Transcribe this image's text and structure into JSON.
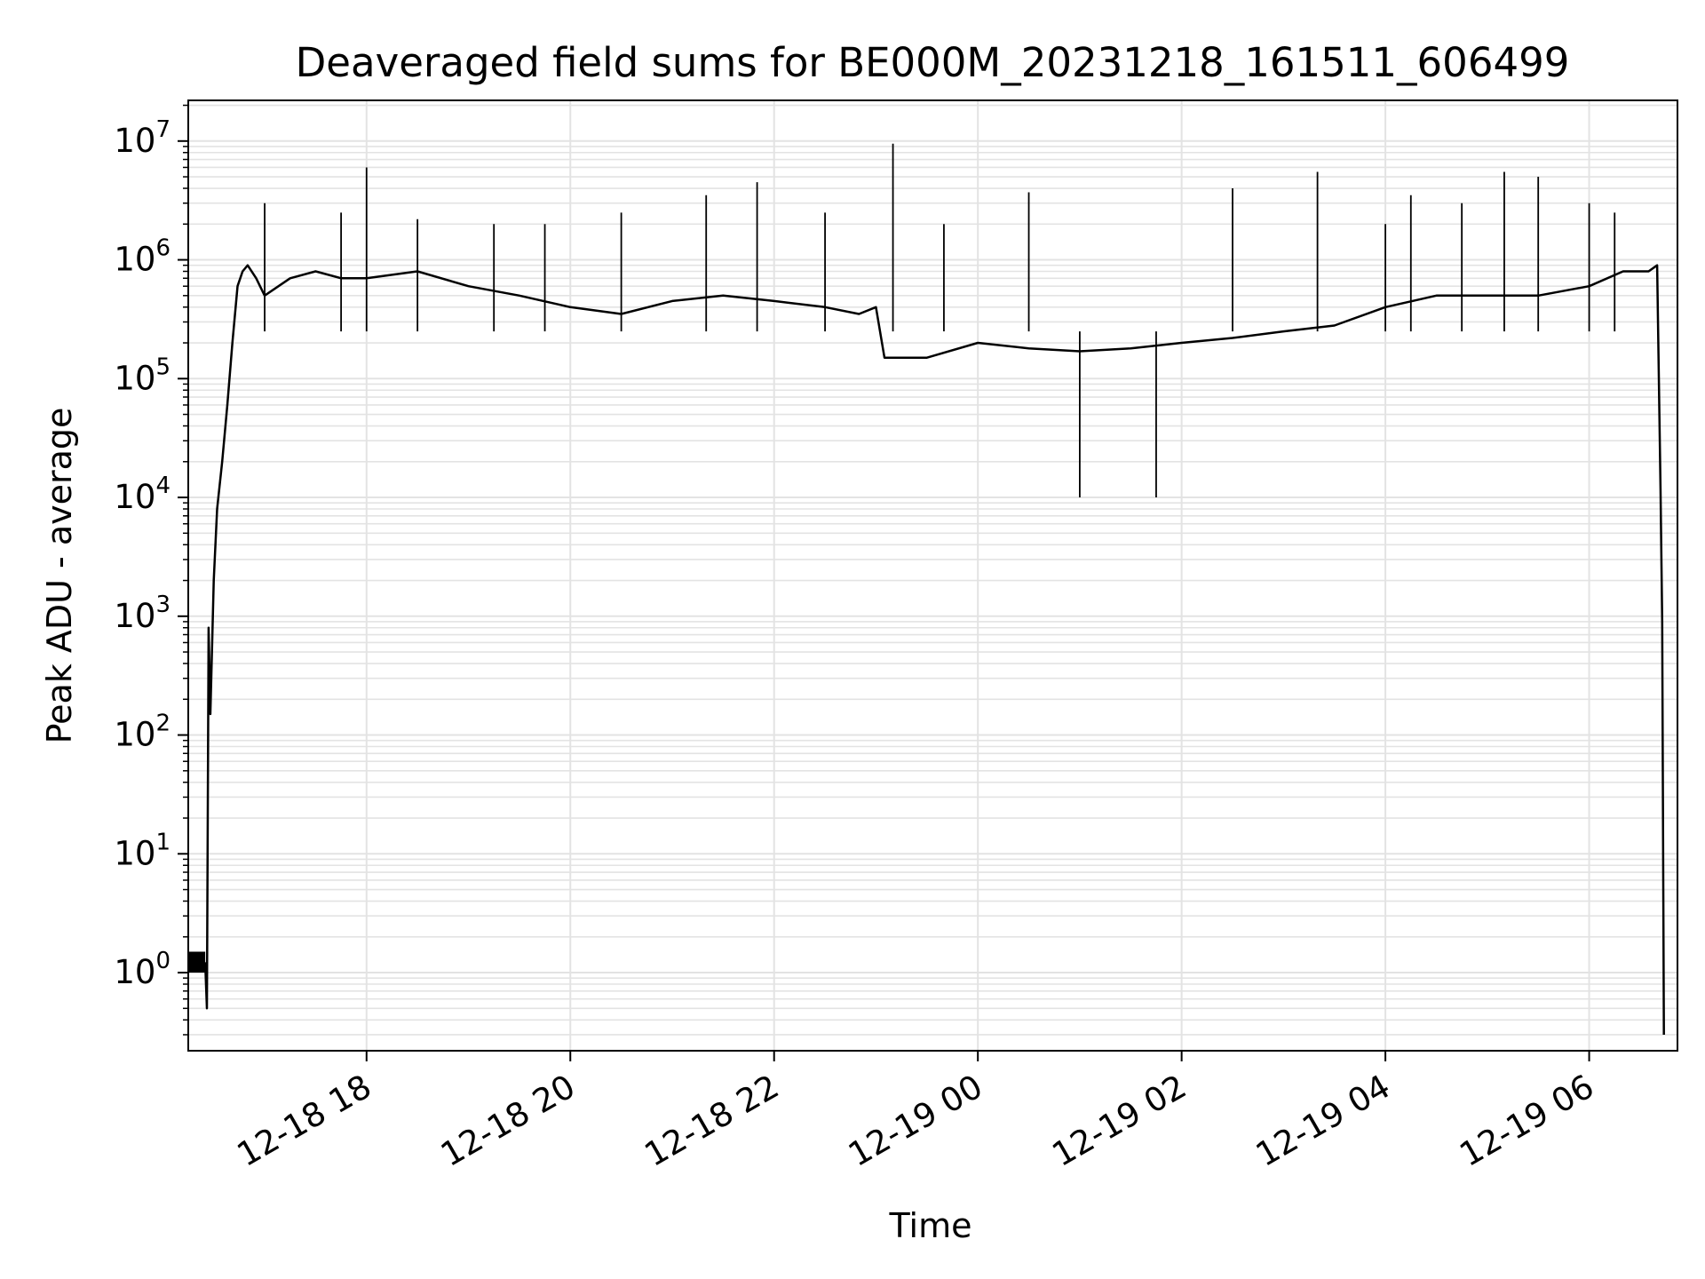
{
  "chart_data": {
    "type": "line",
    "title": "Deaveraged field sums for BE000M_20231218_161511_606499",
    "xlabel": "Time",
    "ylabel": "Peak ADU - average",
    "y_scale": "log",
    "ylim": [
      0.22,
      22000000
    ],
    "y_ticks": [
      {
        "value": 1,
        "base": "10",
        "exp": "0"
      },
      {
        "value": 10,
        "base": "10",
        "exp": "1"
      },
      {
        "value": 100,
        "base": "10",
        "exp": "2"
      },
      {
        "value": 1000,
        "base": "10",
        "exp": "3"
      },
      {
        "value": 10000,
        "base": "10",
        "exp": "4"
      },
      {
        "value": 100000,
        "base": "10",
        "exp": "5"
      },
      {
        "value": 1000000,
        "base": "10",
        "exp": "6"
      },
      {
        "value": 10000000,
        "base": "10",
        "exp": "7"
      }
    ],
    "x_scale": "time",
    "xlim": [
      "2023-12-18 16:15",
      "2023-12-19 06:52"
    ],
    "x_ticks": [
      {
        "value": "2023-12-18 18:00",
        "label": "12-18 18"
      },
      {
        "value": "2023-12-18 20:00",
        "label": "12-18 20"
      },
      {
        "value": "2023-12-18 22:00",
        "label": "12-18 22"
      },
      {
        "value": "2023-12-19 00:00",
        "label": "12-19 00"
      },
      {
        "value": "2023-12-19 02:00",
        "label": "12-19 02"
      },
      {
        "value": "2023-12-19 04:00",
        "label": "12-19 04"
      },
      {
        "value": "2023-12-19 06:00",
        "label": "12-19 06"
      }
    ],
    "grid": true,
    "legend": "none",
    "series_color": "#000000",
    "series": [
      {
        "x": [
          "2023-12-18 16:15",
          "2023-12-18 16:20",
          "2023-12-18 16:25",
          "2023-12-18 16:26",
          "2023-12-18 16:27",
          "2023-12-18 16:28",
          "2023-12-18 16:30",
          "2023-12-18 16:32",
          "2023-12-18 16:35",
          "2023-12-18 16:38",
          "2023-12-18 16:41",
          "2023-12-18 16:44",
          "2023-12-18 16:47",
          "2023-12-18 16:50",
          "2023-12-18 16:55",
          "2023-12-18 17:00",
          "2023-12-18 17:15",
          "2023-12-18 17:30",
          "2023-12-18 17:45",
          "2023-12-18 18:00",
          "2023-12-18 18:30",
          "2023-12-18 19:00",
          "2023-12-18 19:30",
          "2023-12-18 20:00",
          "2023-12-18 20:30",
          "2023-12-18 21:00",
          "2023-12-18 21:30",
          "2023-12-18 22:00",
          "2023-12-18 22:30",
          "2023-12-18 22:50",
          "2023-12-18 23:00",
          "2023-12-18 23:05",
          "2023-12-18 23:30",
          "2023-12-19 00:00",
          "2023-12-19 00:30",
          "2023-12-19 01:00",
          "2023-12-19 01:30",
          "2023-12-19 02:00",
          "2023-12-19 02:30",
          "2023-12-19 03:00",
          "2023-12-19 03:30",
          "2023-12-19 04:00",
          "2023-12-19 04:30",
          "2023-12-19 05:00",
          "2023-12-19 05:30",
          "2023-12-19 06:00",
          "2023-12-19 06:20",
          "2023-12-19 06:35",
          "2023-12-19 06:40",
          "2023-12-19 06:42",
          "2023-12-19 06:43",
          "2023-12-19 06:44"
        ],
        "y": [
          1.2,
          1.2,
          1.2,
          0.5,
          800,
          150,
          2000,
          8000,
          20000,
          60000,
          200000,
          600000,
          800000,
          900000,
          700000,
          500000,
          700000,
          800000,
          700000,
          700000,
          800000,
          600000,
          500000,
          400000,
          350000,
          450000,
          500000,
          450000,
          400000,
          350000,
          400000,
          150000,
          150000,
          200000,
          180000,
          170000,
          180000,
          200000,
          220000,
          250000,
          280000,
          400000,
          500000,
          500000,
          500000,
          600000,
          800000,
          800000,
          900000,
          12000,
          900,
          0.3
        ],
        "spikes": [
          [
            "2023-12-18 17:00",
            3000000
          ],
          [
            "2023-12-18 17:45",
            2500000
          ],
          [
            "2023-12-18 18:00",
            6000000
          ],
          [
            "2023-12-18 18:30",
            2200000
          ],
          [
            "2023-12-18 19:15",
            2000000
          ],
          [
            "2023-12-18 19:45",
            2000000
          ],
          [
            "2023-12-18 20:30",
            2500000
          ],
          [
            "2023-12-18 21:20",
            3500000
          ],
          [
            "2023-12-18 21:50",
            4500000
          ],
          [
            "2023-12-18 22:30",
            2500000
          ],
          [
            "2023-12-18 23:10",
            9500000
          ],
          [
            "2023-12-18 23:40",
            2000000
          ],
          [
            "2023-12-19 00:30",
            3700000
          ],
          [
            "2023-12-19 01:00",
            10000
          ],
          [
            "2023-12-19 01:45",
            10000
          ],
          [
            "2023-12-19 02:30",
            4000000
          ],
          [
            "2023-12-19 03:20",
            5500000
          ],
          [
            "2023-12-19 04:00",
            2000000
          ],
          [
            "2023-12-19 04:15",
            3500000
          ],
          [
            "2023-12-19 04:45",
            3000000
          ],
          [
            "2023-12-19 05:10",
            5500000
          ],
          [
            "2023-12-19 05:30",
            5000000
          ],
          [
            "2023-12-19 06:00",
            3000000
          ],
          [
            "2023-12-19 06:15",
            2500000
          ]
        ]
      }
    ]
  }
}
